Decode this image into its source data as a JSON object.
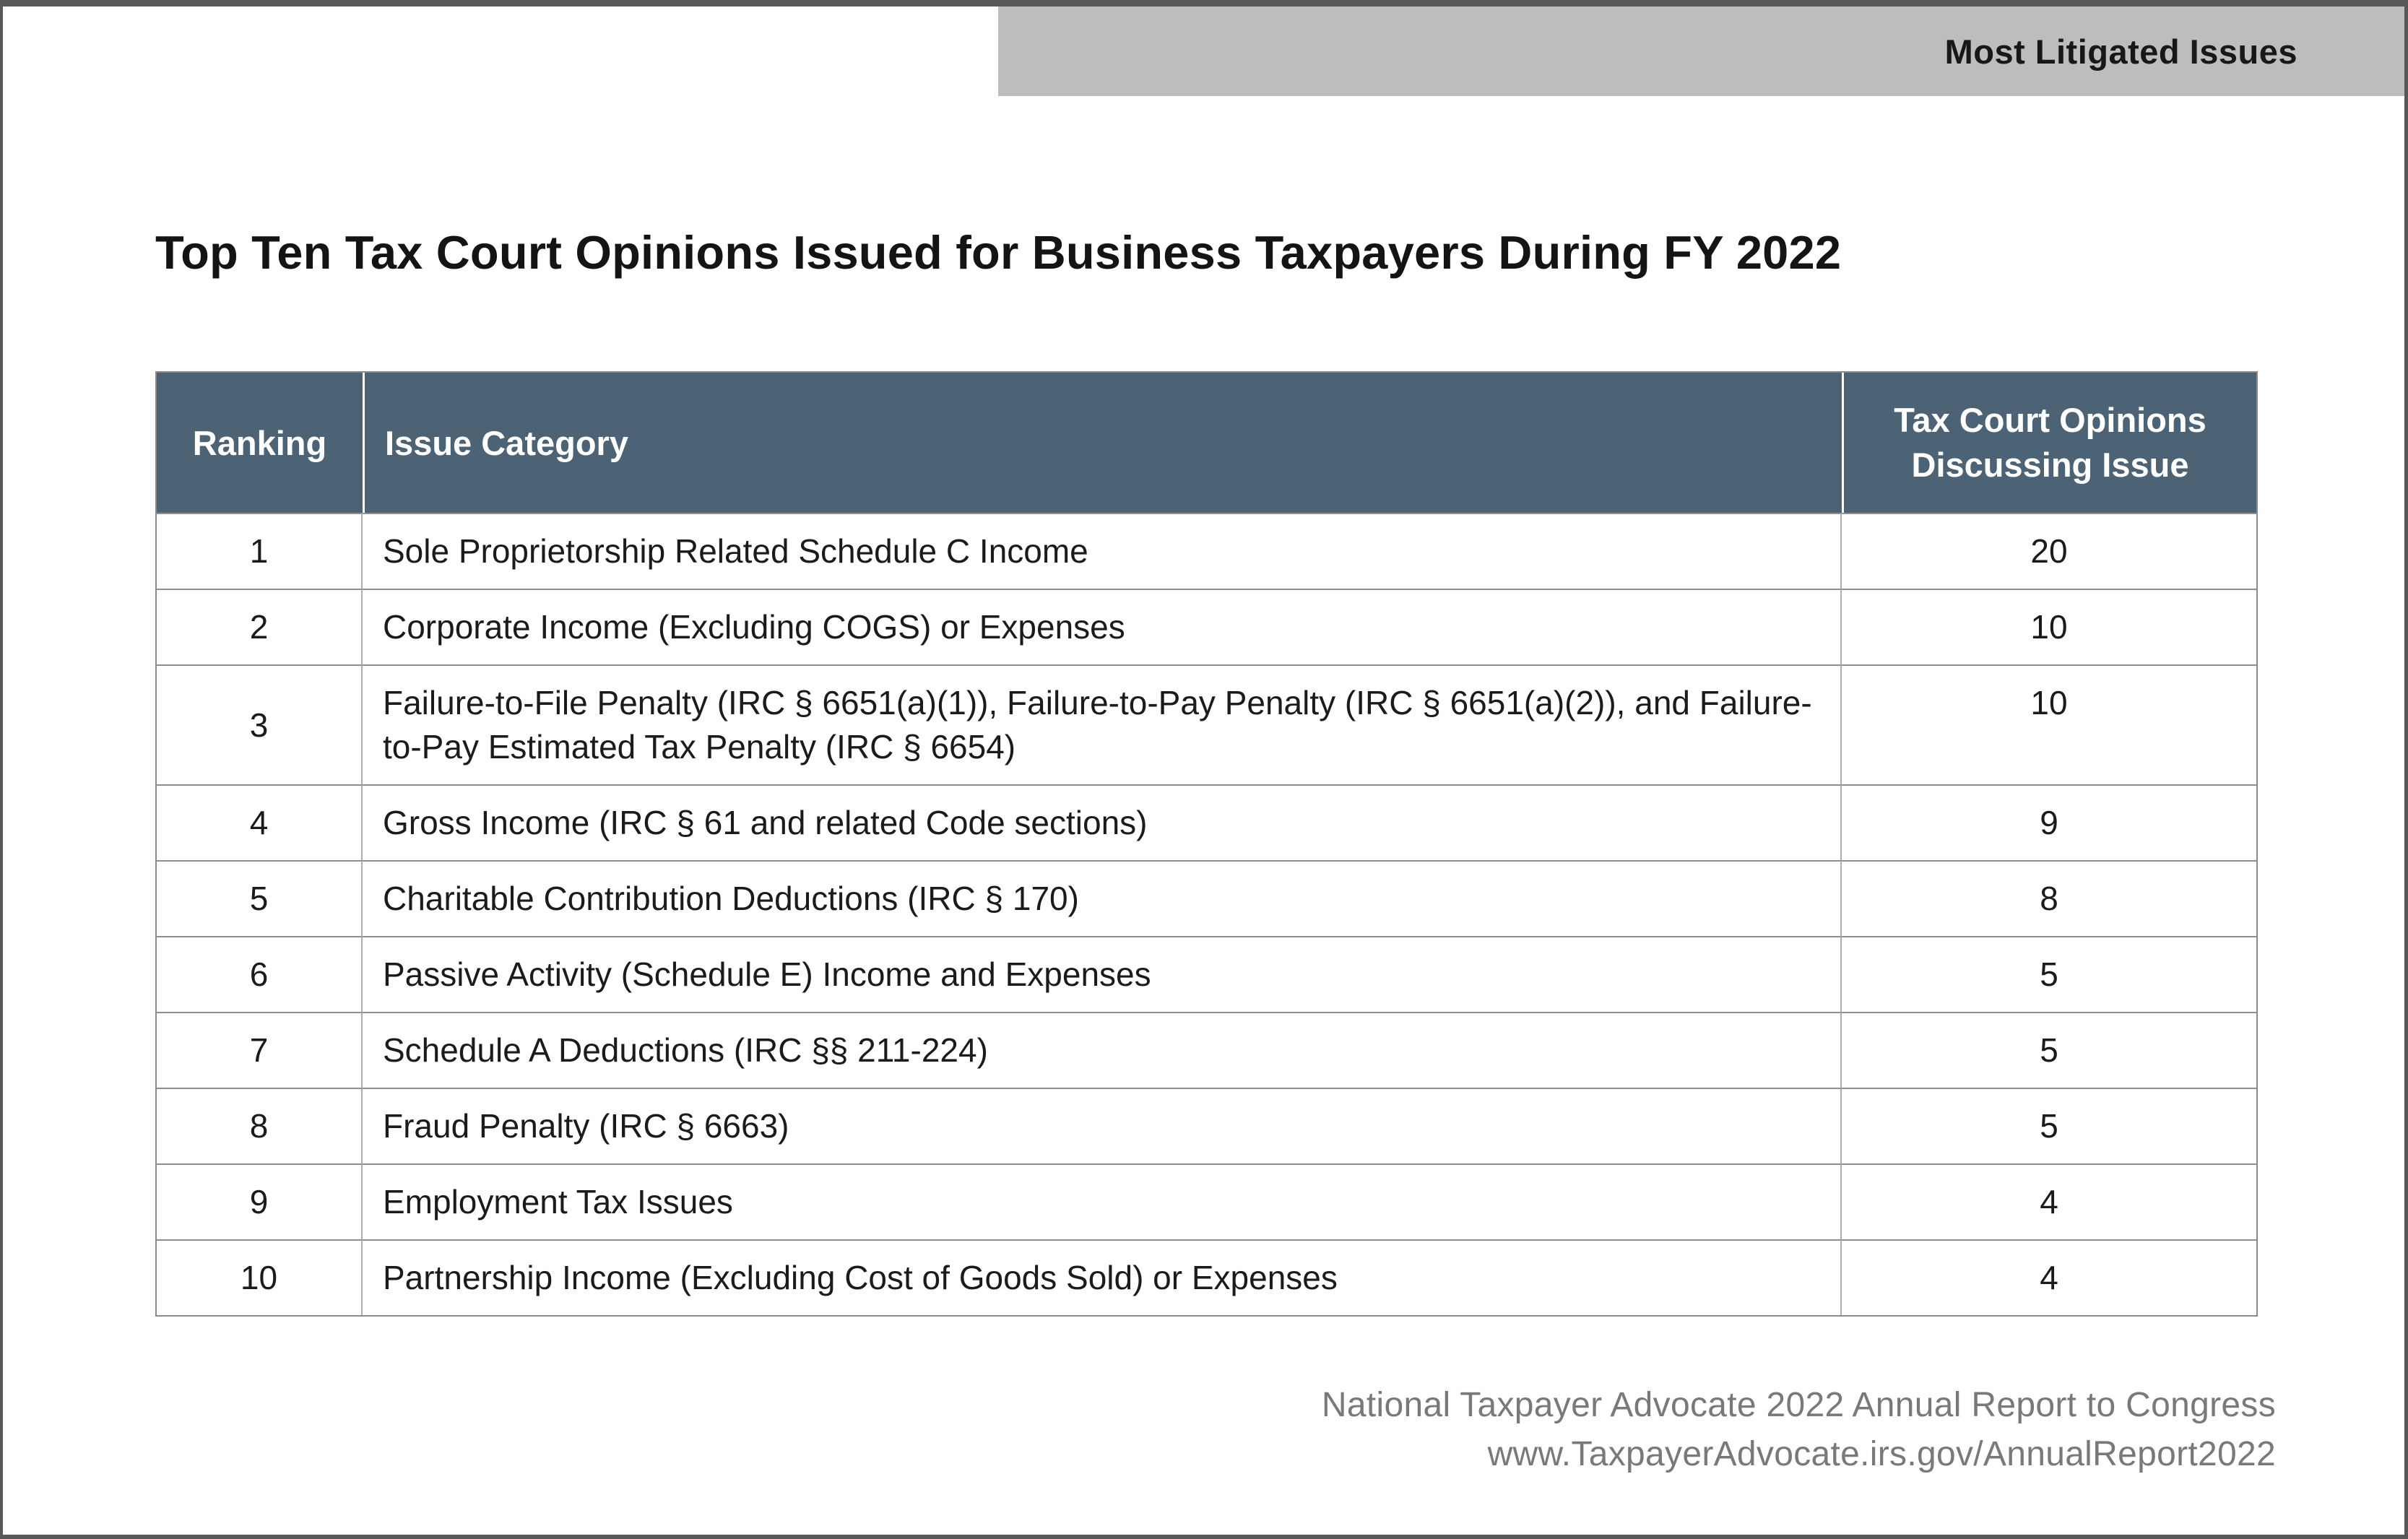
{
  "banner": {
    "label": "Most Litigated Issues"
  },
  "title": "Top Ten Tax Court Opinions Issued for Business Taxpayers During FY 2022",
  "table": {
    "headers": [
      "Ranking",
      "Issue Category",
      "Tax Court Opinions\nDiscussing Issue"
    ],
    "rows": [
      {
        "ranking": "1",
        "category": "Sole Proprietorship Related Schedule C Income",
        "opinions": "20"
      },
      {
        "ranking": "2",
        "category": "Corporate Income (Excluding COGS) or Expenses",
        "opinions": "10"
      },
      {
        "ranking": "3",
        "category": "Failure-to-File Penalty (IRC § 6651(a)(1)), Failure-to-Pay Penalty (IRC § 6651(a)(2)), and Failure-to-Pay Estimated Tax Penalty (IRC § 6654)",
        "opinions": "10"
      },
      {
        "ranking": "4",
        "category": "Gross Income (IRC § 61 and related Code sections)",
        "opinions": "9"
      },
      {
        "ranking": "5",
        "category": "Charitable Contribution Deductions (IRC § 170)",
        "opinions": "8"
      },
      {
        "ranking": "6",
        "category": "Passive Activity (Schedule E) Income and Expenses",
        "opinions": "5"
      },
      {
        "ranking": "7",
        "category": "Schedule A Deductions (IRC §§ 211-224)",
        "opinions": "5"
      },
      {
        "ranking": "8",
        "category": "Fraud Penalty (IRC § 6663)",
        "opinions": "5"
      },
      {
        "ranking": "9",
        "category": "Employment Tax Issues",
        "opinions": "4"
      },
      {
        "ranking": "10",
        "category": "Partnership Income (Excluding Cost of Goods Sold) or Expenses",
        "opinions": "4"
      }
    ]
  },
  "footer": {
    "line1": "National Taxpayer Advocate 2022 Annual Report to Congress",
    "line2": "www.TaxpayerAdvocate.irs.gov/AnnualReport2022"
  },
  "colors": {
    "header_bg": "#4c6375",
    "banner_bg": "#bcbdbf",
    "frame_border": "#58585a",
    "footer_text": "#77797c",
    "row_border": "#8f8f8f"
  }
}
